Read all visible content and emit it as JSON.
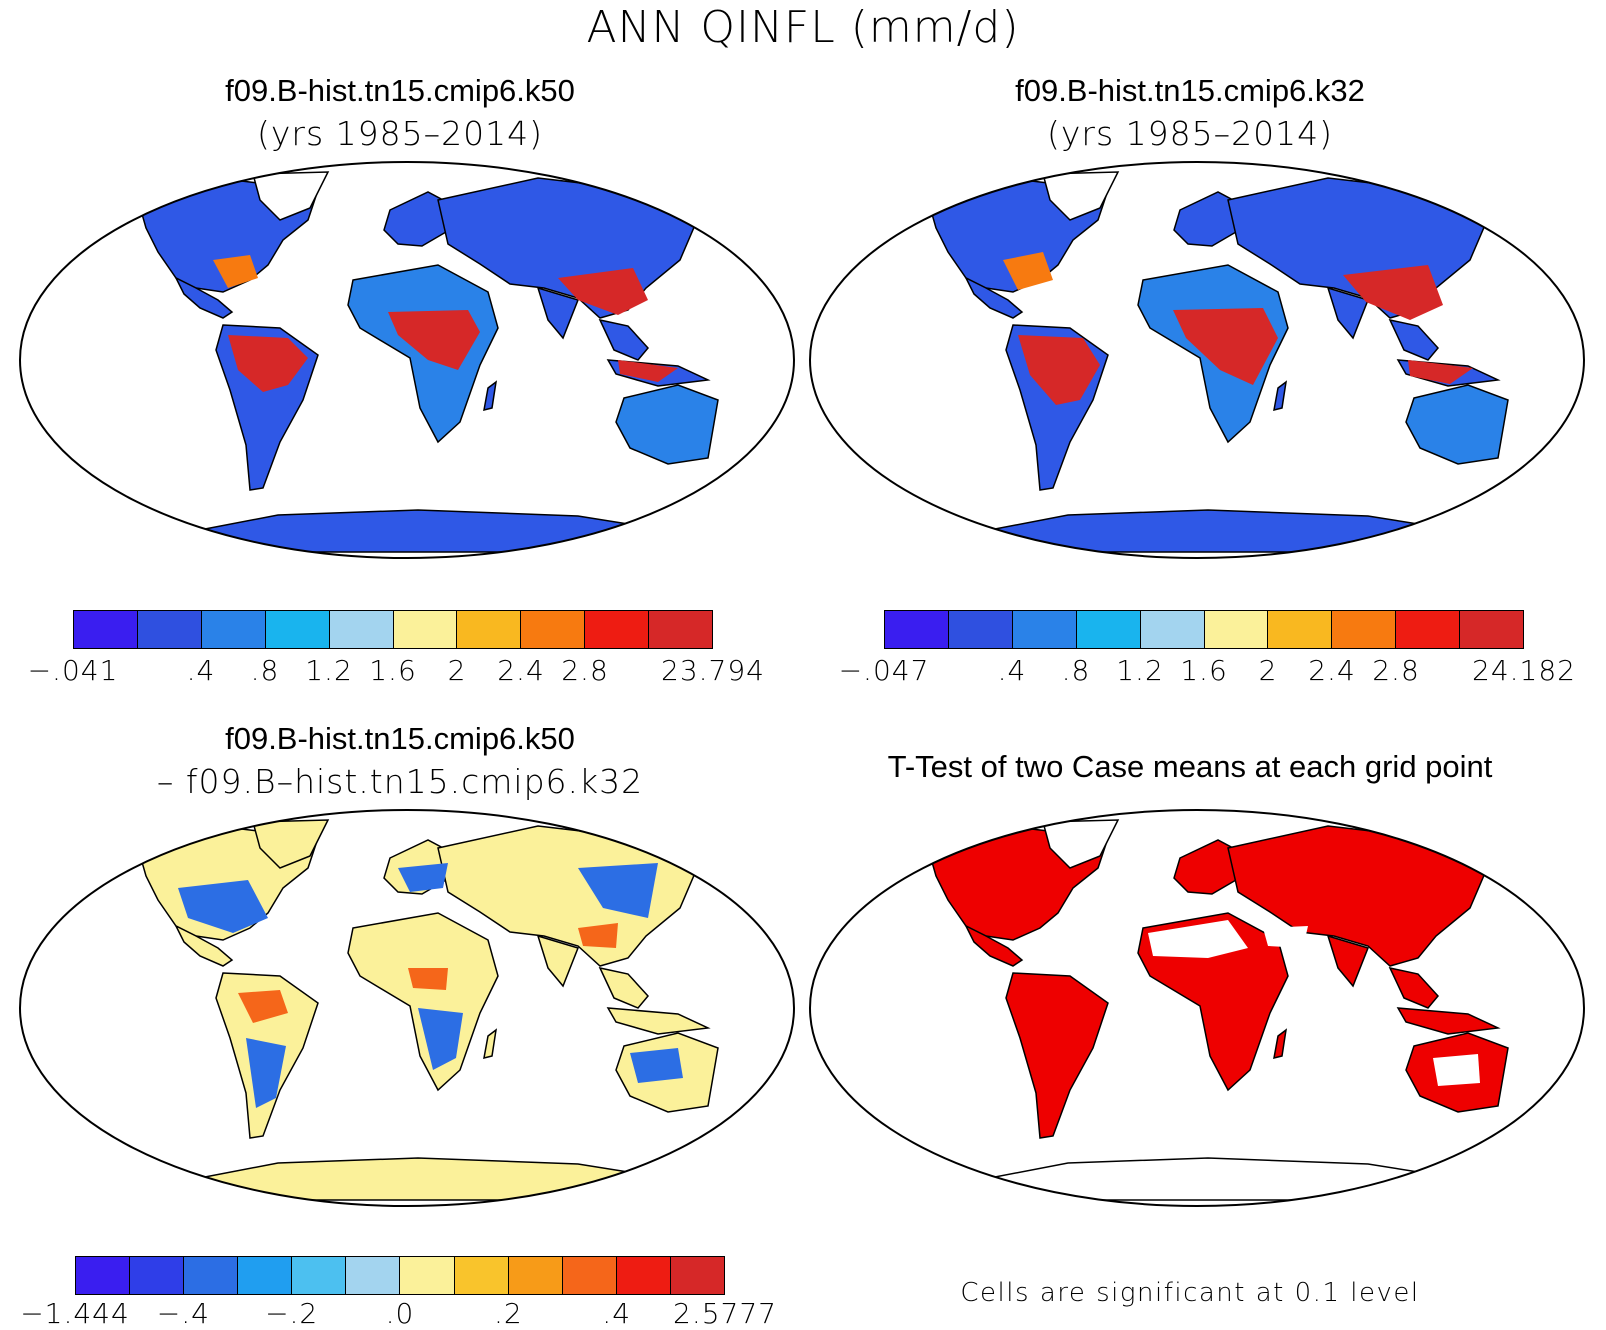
{
  "title": "ANN QINFL (mm/d)",
  "panels": [
    {
      "title": "f09.B-hist.tn15.cmip6.k50",
      "subtitle": "(yrs 1985–2014)"
    },
    {
      "title": "f09.B-hist.tn15.cmip6.k32",
      "subtitle": "(yrs 1985–2014)"
    },
    {
      "title": "f09.B-hist.tn15.cmip6.k50",
      "subtitle": "– f09.B–hist.tn15.cmip6.k32"
    },
    {
      "title": "T-Test of two Case means at each grid point",
      "subtitle": ""
    }
  ],
  "colorbars": [
    {
      "colors": [
        "#3a1ef0",
        "#2f50e0",
        "#2a82e8",
        "#19b4ee",
        "#a3d4ef",
        "#fbf19a",
        "#f9b820",
        "#f77a10",
        "#ee1c12",
        "#d62828"
      ],
      "labels": [
        "−.041",
        ".4",
        ".8",
        "1.2",
        "1.6",
        "2",
        "2.4",
        "2.8",
        "23.794"
      ]
    },
    {
      "colors": [
        "#3a1ef0",
        "#2f50e0",
        "#2a82e8",
        "#19b4ee",
        "#a3d4ef",
        "#fbf19a",
        "#f9b820",
        "#f77a10",
        "#ee1c12",
        "#d62828"
      ],
      "labels": [
        "−.047",
        ".4",
        ".8",
        "1.2",
        "1.6",
        "2",
        "2.4",
        "2.8",
        "24.182"
      ]
    },
    {
      "colors": [
        "#3a1ef0",
        "#2f3ee8",
        "#2c6ee4",
        "#209ef0",
        "#4cc0f0",
        "#a3d4ef",
        "#fbf19a",
        "#f9c42c",
        "#f79b18",
        "#f5661a",
        "#ee1c12",
        "#d62828"
      ],
      "labels": [
        "−1.444",
        "−.4",
        "−.2",
        ".0",
        ".2",
        ".4",
        "2.5777"
      ]
    }
  ],
  "note": "Cells are significant at 0.1 level",
  "map_colors": {
    "ocean": "#ffffff",
    "land_low": "#2f58e6",
    "land_mid": "#2a82e8",
    "wet": "#d62828",
    "warm": "#f77a10",
    "diff_neutral": "#fbf19a",
    "significant": "#ee0000"
  }
}
